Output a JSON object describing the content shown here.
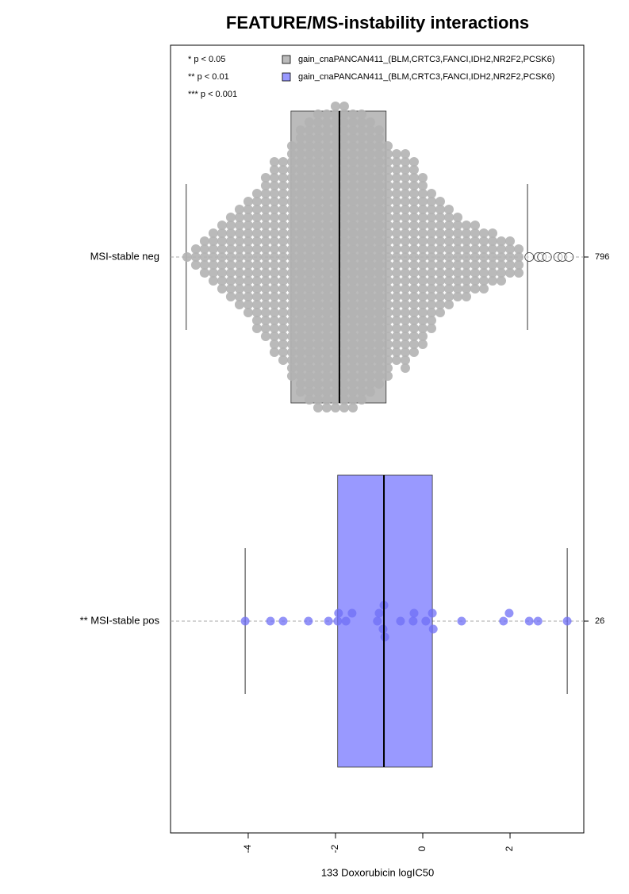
{
  "chart_data": {
    "type": "box",
    "title": "FEATURE/MS-instability interactions",
    "x_label": "133 Doxorubicin logIC50",
    "xlim": [
      -5.78,
      3.69
    ],
    "xticks": [
      -4,
      -2,
      0,
      2
    ],
    "notes": [
      "* p < 0.05",
      "** p < 0.01",
      "*** p < 0.001"
    ],
    "legend": [
      {
        "label": "gain_cnaPANCAN411_(BLM,CRTC3,FANCI,IDH2,NR2F2,PCSK6)",
        "color": "#bbbbbb"
      },
      {
        "label": "gain_cnaPANCAN411_(BLM,CRTC3,FANCI,IDH2,NR2F2,PCSK6)",
        "color": "#9999ff"
      }
    ],
    "series": [
      {
        "name": "MSI-stable neg",
        "n": 796,
        "color": "#bbbbbb",
        "point_color": "#b3b3b3",
        "box": {
          "whislo": -5.42,
          "q1": -3.02,
          "med": -1.91,
          "q3": -0.84,
          "whishi": 2.4
        },
        "outliers": [
          2.44,
          2.65,
          2.73,
          2.85,
          3.1,
          3.2,
          3.35
        ],
        "swarm": {
          "x": [
            -5.4,
            -5.2,
            -5.0,
            -4.8,
            -4.6,
            -4.4,
            -4.2,
            -4.0,
            -3.8,
            -3.6,
            -3.4,
            -3.2,
            -3.0,
            -2.8,
            -2.6,
            -2.4,
            -2.2,
            -2.0,
            -1.8,
            -1.6,
            -1.4,
            -1.2,
            -1.0,
            -0.8,
            -0.6,
            -0.4,
            -0.2,
            0.0,
            0.2,
            0.4,
            0.6,
            0.8,
            1.0,
            1.2,
            1.4,
            1.6,
            1.8,
            2.0,
            2.2
          ],
          "counts": [
            1,
            3,
            5,
            7,
            9,
            11,
            13,
            15,
            18,
            21,
            25,
            26,
            30,
            34,
            36,
            38,
            38,
            39,
            39,
            38,
            37,
            35,
            33,
            30,
            27,
            28,
            25,
            22,
            18,
            15,
            13,
            11,
            10,
            9,
            8,
            7,
            6,
            5,
            4
          ]
        }
      },
      {
        "name": "** MSI-stable pos",
        "n": 26,
        "color": "#9999ff",
        "point_color": "#6f6ff5",
        "box": {
          "whislo": -4.07,
          "q1": -1.95,
          "med": -0.89,
          "q3": 0.22,
          "whishi": 3.31
        },
        "points": [
          -4.07,
          -3.49,
          -3.2,
          -2.62,
          -2.16,
          -1.95,
          -1.93,
          -1.76,
          -1.62,
          -1.04,
          -1.0,
          -0.91,
          -0.89,
          -0.87,
          -0.51,
          -0.22,
          -0.2,
          0.07,
          0.22,
          0.24,
          0.89,
          1.85,
          1.98,
          2.44,
          2.64,
          3.31
        ]
      }
    ]
  }
}
